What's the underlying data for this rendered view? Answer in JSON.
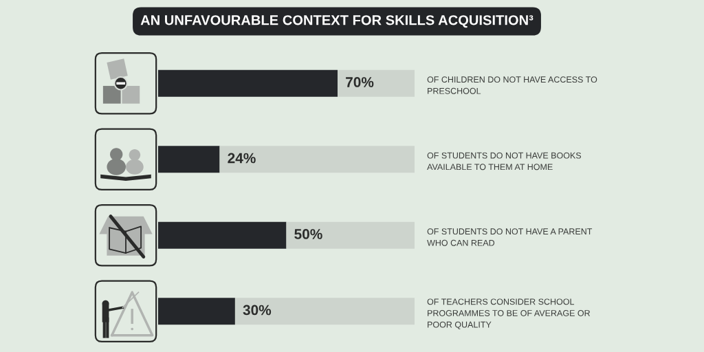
{
  "chart_data": {
    "type": "bar",
    "orientation": "horizontal",
    "stacked": true,
    "title": "AN UNFAVOURABLE CONTEXT FOR SKILLS ACQUISITION³",
    "categories": [
      "OF CHILDREN DO NOT HAVE ACCESS TO PRESCHOOL",
      "OF STUDENTS DO NOT HAVE BOOKS AVAILABLE TO THEM AT HOME",
      "OF STUDENTS DO NOT HAVE A PARENT WHO CAN READ",
      "OF TEACHERS CONSIDER SCHOOL PROGRAMMES TO BE OF AVERAGE OR POOR QUALITY"
    ],
    "series": [
      {
        "color": "#25272b",
        "values": [
          70,
          24,
          50,
          30
        ],
        "value_labels": [
          "70%",
          "24%",
          "50%",
          "30%"
        ]
      },
      {
        "color": "#cdd4cd",
        "values": [
          30,
          76,
          50,
          70
        ]
      }
    ],
    "xlim": [
      0,
      100
    ],
    "tick_labels": "y",
    "grid": false
  }
}
